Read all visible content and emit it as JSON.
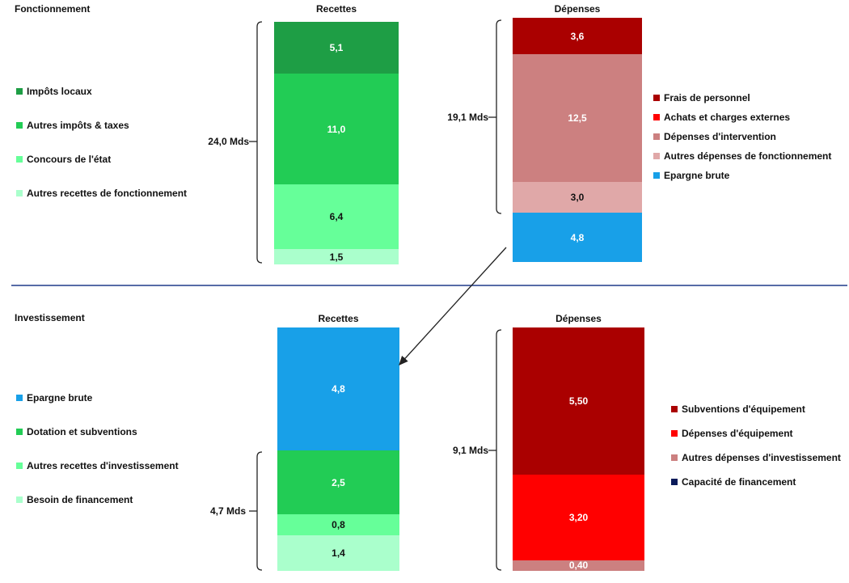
{
  "chart_data": [
    {
      "type": "bar",
      "section": "Fonctionnement",
      "columns": [
        {
          "title": "Recettes",
          "total_label": "24,0 Mds",
          "segments": [
            {
              "name": "Impôts locaux",
              "value": 5.1,
              "label": "5,1",
              "color": "#1e9e45",
              "text_color": "#ffffff"
            },
            {
              "name": "Autres impôts & taxes",
              "value": 11.0,
              "label": "11,0",
              "color": "#22cc55",
              "text_color": "#ffffff"
            },
            {
              "name": "Concours de l'état",
              "value": 6.4,
              "label": "6,4",
              "color": "#66ff99",
              "text_color": "#111111"
            },
            {
              "name": "Autres recettes de fonctionnement",
              "value": 1.5,
              "label": "1,5",
              "color": "#aaffcc",
              "text_color": "#111111"
            }
          ]
        },
        {
          "title": "Dépenses",
          "total_label": "19,1 Mds",
          "segments": [
            {
              "name": "Frais de personnel",
              "value": 3.6,
              "label": "3,6",
              "color": "#aa0000",
              "text_color": "#ffffff"
            },
            {
              "name": "Dépenses d'intervention",
              "value": 12.5,
              "label": "12,5",
              "color": "#cc8080",
              "text_color": "#ffffff"
            },
            {
              "name": "Autres dépenses de fonctionnement",
              "value": 3.0,
              "label": "3,0",
              "color": "#e0a8a8",
              "text_color": "#111111"
            },
            {
              "name": "Epargne brute",
              "value": 4.8,
              "label": "4,8",
              "color": "#18a0e8",
              "text_color": "#ffffff"
            }
          ]
        }
      ],
      "legend_left": [
        {
          "label": "Impôts locaux",
          "color": "#1e9e45"
        },
        {
          "label": "Autres impôts & taxes",
          "color": "#22cc55"
        },
        {
          "label": "Concours de l'état",
          "color": "#66ff99"
        },
        {
          "label": "Autres recettes de fonctionnement",
          "color": "#aaffcc"
        }
      ],
      "legend_right": [
        {
          "label": "Frais de personnel",
          "color": "#aa0000"
        },
        {
          "label": "Achats et charges externes",
          "color": "#ff0000"
        },
        {
          "label": "Dépenses d'intervention",
          "color": "#cc8080"
        },
        {
          "label": "Autres dépenses de fonctionnement",
          "color": "#e0a8a8"
        },
        {
          "label": "Epargne brute",
          "color": "#18a0e8"
        }
      ]
    },
    {
      "type": "bar",
      "section": "Investissement",
      "columns": [
        {
          "title": "Recettes",
          "total_label": "4,7 Mds",
          "segments": [
            {
              "name": "Epargne brute",
              "value": 4.8,
              "label": "4,8",
              "color": "#18a0e8",
              "text_color": "#ffffff"
            },
            {
              "name": "Dotation et subventions",
              "value": 2.5,
              "label": "2,5",
              "color": "#22cc55",
              "text_color": "#ffffff"
            },
            {
              "name": "Autres recettes d'investissement",
              "value": 0.8,
              "label": "0,8",
              "color": "#66ff99",
              "text_color": "#111111"
            },
            {
              "name": "Besoin de financement",
              "value": 1.4,
              "label": "1,4",
              "color": "#aaffcc",
              "text_color": "#111111"
            }
          ]
        },
        {
          "title": "Dépenses",
          "total_label": "9,1 Mds",
          "segments": [
            {
              "name": "Subventions d'équipement",
              "value": 5.5,
              "label": "5,50",
              "color": "#aa0000",
              "text_color": "#ffffff"
            },
            {
              "name": "Dépenses d'équipement",
              "value": 3.2,
              "label": "3,20",
              "color": "#ff0000",
              "text_color": "#ffffff"
            },
            {
              "name": "Autres dépenses d'investissement",
              "value": 0.4,
              "label": "0,40",
              "color": "#cc8080",
              "text_color": "#ffffff"
            }
          ]
        }
      ],
      "legend_left": [
        {
          "label": "Epargne brute",
          "color": "#18a0e8"
        },
        {
          "label": "Dotation et subventions",
          "color": "#22cc55"
        },
        {
          "label": "Autres recettes d'investissement",
          "color": "#66ff99"
        },
        {
          "label": "Besoin de financement",
          "color": "#aaffcc"
        }
      ],
      "legend_right": [
        {
          "label": "Subventions d'équipement",
          "color": "#aa0000"
        },
        {
          "label": "Dépenses d'équipement",
          "color": "#ff0000"
        },
        {
          "label": "Autres dépenses d'investissement",
          "color": "#cc8080"
        },
        {
          "label": "Capacité de financement",
          "color": "#0a1a5a"
        }
      ]
    }
  ],
  "colors": {
    "divider": "#1f3a8a",
    "bracket": "#222222",
    "arrow": "#222222"
  }
}
